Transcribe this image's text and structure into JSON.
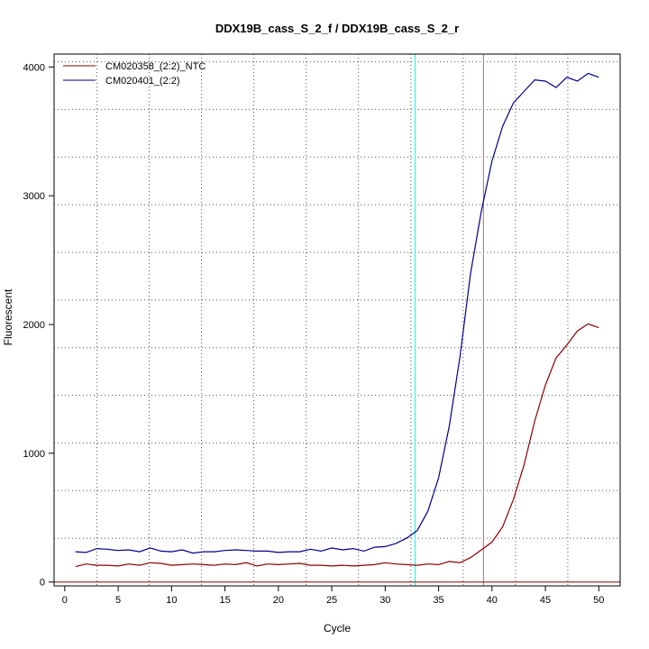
{
  "chart_data": {
    "type": "line",
    "title": "DDX19B_cass_S_2_f / DDX19B_cass_S_2_r",
    "xlabel": "Cycle",
    "ylabel": "Fluorescent",
    "xlim": [
      -1,
      52
    ],
    "ylim": [
      -30,
      4100
    ],
    "xticks": [
      0,
      5,
      10,
      15,
      20,
      25,
      30,
      35,
      40,
      45,
      50
    ],
    "yticks": [
      0,
      1000,
      2000,
      3000,
      4000
    ],
    "grid": "dotted",
    "legend_position": "top-left",
    "x": [
      1,
      2,
      3,
      4,
      5,
      6,
      7,
      8,
      9,
      10,
      11,
      12,
      13,
      14,
      15,
      16,
      17,
      18,
      19,
      20,
      21,
      22,
      23,
      24,
      25,
      26,
      27,
      28,
      29,
      30,
      31,
      32,
      33,
      34,
      35,
      36,
      37,
      38,
      39,
      40,
      41,
      42,
      43,
      44,
      45,
      46,
      47,
      48,
      49,
      50
    ],
    "series": [
      {
        "name": "CM020358_(2:2)_NTC",
        "color": "#8b0000",
        "values": [
          120,
          140,
          130,
          130,
          125,
          140,
          130,
          150,
          145,
          130,
          135,
          140,
          135,
          130,
          140,
          135,
          150,
          125,
          140,
          135,
          140,
          145,
          130,
          130,
          125,
          130,
          125,
          130,
          135,
          150,
          140,
          135,
          130,
          140,
          135,
          160,
          150,
          190,
          250,
          310,
          430,
          640,
          910,
          1250,
          1530,
          1740,
          1840,
          1950,
          2005,
          1975
        ]
      },
      {
        "name": "CM020401_(2:2)",
        "color": "#00008b",
        "values": [
          235,
          230,
          260,
          255,
          245,
          250,
          235,
          265,
          240,
          235,
          250,
          225,
          235,
          235,
          245,
          250,
          245,
          240,
          240,
          230,
          235,
          235,
          255,
          240,
          265,
          250,
          260,
          240,
          270,
          275,
          300,
          340,
          400,
          550,
          810,
          1210,
          1750,
          2400,
          2880,
          3270,
          3540,
          3720,
          3810,
          3900,
          3890,
          3840,
          3920,
          3890,
          3950,
          3920
        ]
      }
    ],
    "vertical_lines": [
      {
        "x": 32.8,
        "color": "#00ffff"
      },
      {
        "x": 39.2,
        "color": "#cd5c5c"
      }
    ],
    "colors": {
      "baseline": "#8b0000",
      "grid": "#555555",
      "axis": "#000000"
    }
  }
}
